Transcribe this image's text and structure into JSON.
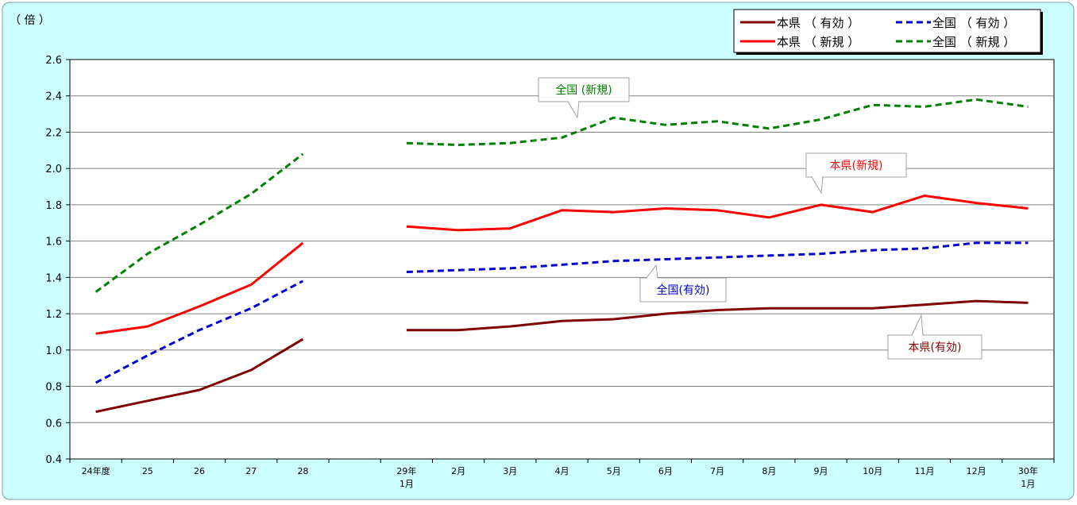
{
  "chart_data": {
    "type": "line",
    "y_unit_label": "（ 倍 ）",
    "ylim": [
      0.4,
      2.6
    ],
    "y_ticks": [
      "0.4",
      "0.6",
      "0.8",
      "1.0",
      "1.2",
      "1.4",
      "1.6",
      "1.8",
      "2.0",
      "2.2",
      "2.4",
      "2.6"
    ],
    "y_tick_values": [
      0.4,
      0.6,
      0.8,
      1.0,
      1.2,
      1.4,
      1.6,
      1.8,
      2.0,
      2.2,
      2.4,
      2.6
    ],
    "grid": true,
    "legend_position": "top-right",
    "categories": [
      [
        "24年度"
      ],
      [
        "25"
      ],
      [
        "26"
      ],
      [
        "27"
      ],
      [
        "28"
      ],
      [
        ""
      ],
      [
        "29年",
        "1月"
      ],
      [
        "2月"
      ],
      [
        "3月"
      ],
      [
        "4月"
      ],
      [
        "5月"
      ],
      [
        "6月"
      ],
      [
        "7月"
      ],
      [
        "8月"
      ],
      [
        "9月"
      ],
      [
        "10月"
      ],
      [
        "11月"
      ],
      [
        "12月"
      ],
      [
        "30年",
        "1月"
      ]
    ],
    "series": [
      {
        "name": "本県 （ 有効 ）",
        "label": "本県(有効)",
        "color": "#800000",
        "dash": false,
        "values": [
          0.66,
          0.72,
          0.78,
          0.89,
          1.06,
          null,
          1.11,
          1.11,
          1.13,
          1.16,
          1.17,
          1.2,
          1.22,
          1.23,
          1.23,
          1.23,
          1.25,
          1.27,
          1.26
        ]
      },
      {
        "name": "全国 （ 有効 ）",
        "label": "全国(有効)",
        "color": "#0000cc",
        "dash": true,
        "values": [
          0.82,
          0.97,
          1.11,
          1.23,
          1.38,
          null,
          1.43,
          1.44,
          1.45,
          1.47,
          1.49,
          1.5,
          1.51,
          1.52,
          1.53,
          1.55,
          1.56,
          1.59,
          1.59
        ]
      },
      {
        "name": "本県 （ 新規 ）",
        "label": "本県(新規)",
        "color": "#ff0000",
        "dash": false,
        "values": [
          1.09,
          1.13,
          1.24,
          1.36,
          1.59,
          null,
          1.68,
          1.66,
          1.67,
          1.77,
          1.76,
          1.78,
          1.77,
          1.73,
          1.8,
          1.76,
          1.85,
          1.81,
          1.78
        ]
      },
      {
        "name": "全国 （ 新規 ）",
        "label": "全国 (新規)",
        "color": "#008000",
        "dash": true,
        "values": [
          1.32,
          1.53,
          1.69,
          1.86,
          2.08,
          null,
          2.14,
          2.13,
          2.14,
          2.17,
          2.28,
          2.24,
          2.26,
          2.22,
          2.27,
          2.35,
          2.34,
          2.38,
          2.34
        ]
      }
    ]
  }
}
